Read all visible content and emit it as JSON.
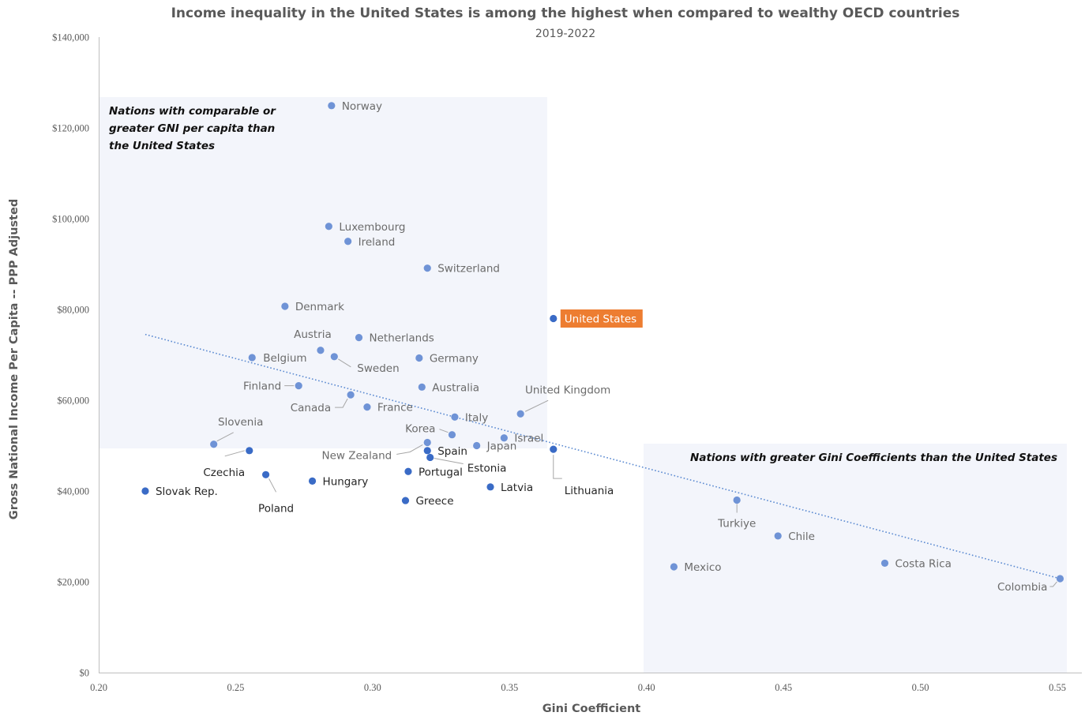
{
  "chart_data": {
    "type": "scatter",
    "title": "Income inequality in the United States is among the highest when compared to wealthy OECD countries",
    "subtitle": "2019-2022",
    "xlabel": "Gini Coefficient",
    "ylabel": "Gross National Income Per Capita -- PPP Adjusted",
    "xlim": [
      0.2,
      0.55
    ],
    "ylim": [
      0,
      140000
    ],
    "x_ticks": [
      0.2,
      0.25,
      0.3,
      0.35,
      0.4,
      0.45,
      0.5,
      0.55
    ],
    "x_tick_labels": [
      "0.20",
      "0.25",
      "0.30",
      "0.35",
      "0.40",
      "0.45",
      "0.50",
      "0.55"
    ],
    "y_ticks": [
      0,
      20000,
      40000,
      60000,
      80000,
      100000,
      120000,
      140000
    ],
    "y_tick_labels": [
      "$0",
      "$20,000",
      "$40,000",
      "$60,000",
      "$80,000",
      "$100,000",
      "$120,000",
      "$140,000"
    ],
    "grid": false,
    "colors": {
      "light_point": "#6f93d6",
      "dark_point": "#3a6bc6",
      "trendline": "#5b8ad1",
      "highlight_bg": "#ed7d31",
      "shade": "#f3f5fb",
      "light_label": "#6b6b6b",
      "dark_label": "#262626"
    },
    "annotations": [
      "Nations with comparable or greater GNI per capita than the United States",
      "Nations with greater Gini Coefficients than the United States"
    ],
    "annotation_lines": [
      [
        "Nations with comparable or",
        "greater GNI per capita than",
        "the United States"
      ],
      [
        "Nations with greater Gini Coefficients than the United States"
      ]
    ],
    "trendline": {
      "style": "dotted",
      "x": [
        0.217,
        0.551
      ],
      "y": [
        74500,
        20700
      ]
    },
    "points": [
      {
        "name": "Norway",
        "x": 0.285,
        "y": 124900,
        "tone": "light"
      },
      {
        "name": "Luxembourg",
        "x": 0.284,
        "y": 98300,
        "tone": "light"
      },
      {
        "name": "Ireland",
        "x": 0.291,
        "y": 95000,
        "tone": "light"
      },
      {
        "name": "Switzerland",
        "x": 0.32,
        "y": 89100,
        "tone": "light"
      },
      {
        "name": "Denmark",
        "x": 0.268,
        "y": 80700,
        "tone": "light"
      },
      {
        "name": "United States",
        "x": 0.366,
        "y": 78000,
        "tone": "dark",
        "highlight": true
      },
      {
        "name": "Netherlands",
        "x": 0.295,
        "y": 73800,
        "tone": "light"
      },
      {
        "name": "Austria",
        "x": 0.281,
        "y": 71000,
        "tone": "light"
      },
      {
        "name": "Belgium",
        "x": 0.256,
        "y": 69400,
        "tone": "light"
      },
      {
        "name": "Sweden",
        "x": 0.286,
        "y": 69600,
        "tone": "light"
      },
      {
        "name": "Germany",
        "x": 0.317,
        "y": 69300,
        "tone": "light"
      },
      {
        "name": "Finland",
        "x": 0.273,
        "y": 63200,
        "tone": "light"
      },
      {
        "name": "Australia",
        "x": 0.318,
        "y": 62900,
        "tone": "light"
      },
      {
        "name": "Canada",
        "x": 0.292,
        "y": 61200,
        "tone": "light"
      },
      {
        "name": "France",
        "x": 0.298,
        "y": 58500,
        "tone": "light"
      },
      {
        "name": "United Kingdom",
        "x": 0.354,
        "y": 57000,
        "tone": "light"
      },
      {
        "name": "Italy",
        "x": 0.33,
        "y": 56300,
        "tone": "light"
      },
      {
        "name": "Korea",
        "x": 0.329,
        "y": 52400,
        "tone": "light"
      },
      {
        "name": "Israel",
        "x": 0.348,
        "y": 51700,
        "tone": "light"
      },
      {
        "name": "New Zealand",
        "x": 0.32,
        "y": 50700,
        "tone": "light"
      },
      {
        "name": "Slovenia",
        "x": 0.242,
        "y": 50300,
        "tone": "light"
      },
      {
        "name": "Japan",
        "x": 0.338,
        "y": 50000,
        "tone": "light"
      },
      {
        "name": "Lithuania",
        "x": 0.366,
        "y": 49200,
        "tone": "dark"
      },
      {
        "name": "Spain",
        "x": 0.32,
        "y": 48900,
        "tone": "dark"
      },
      {
        "name": "Czechia",
        "x": 0.255,
        "y": 48900,
        "tone": "dark"
      },
      {
        "name": "Estonia",
        "x": 0.321,
        "y": 47400,
        "tone": "dark"
      },
      {
        "name": "Portugal",
        "x": 0.313,
        "y": 44300,
        "tone": "dark"
      },
      {
        "name": "Poland",
        "x": 0.261,
        "y": 43600,
        "tone": "dark"
      },
      {
        "name": "Hungary",
        "x": 0.278,
        "y": 42200,
        "tone": "dark"
      },
      {
        "name": "Latvia",
        "x": 0.343,
        "y": 40900,
        "tone": "dark"
      },
      {
        "name": "Slovak Rep.",
        "x": 0.217,
        "y": 40000,
        "tone": "dark"
      },
      {
        "name": "Greece",
        "x": 0.312,
        "y": 37900,
        "tone": "dark"
      },
      {
        "name": "Turkiye",
        "x": 0.433,
        "y": 38000,
        "tone": "light"
      },
      {
        "name": "Chile",
        "x": 0.448,
        "y": 30100,
        "tone": "light"
      },
      {
        "name": "Costa Rica",
        "x": 0.487,
        "y": 24100,
        "tone": "light"
      },
      {
        "name": "Mexico",
        "x": 0.41,
        "y": 23300,
        "tone": "light"
      },
      {
        "name": "Colombia",
        "x": 0.551,
        "y": 20700,
        "tone": "light"
      }
    ]
  }
}
